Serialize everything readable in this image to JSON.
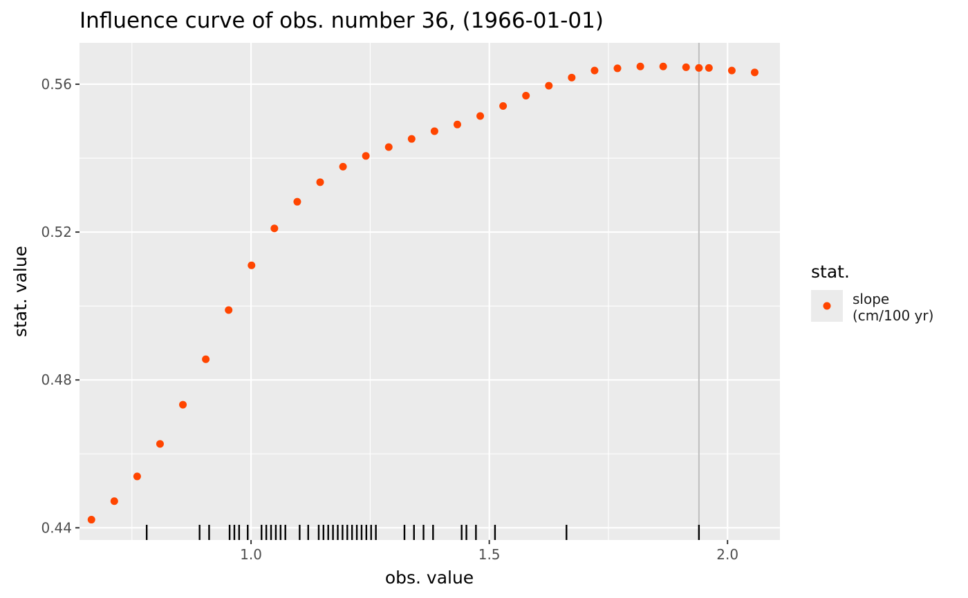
{
  "chart_data": {
    "type": "scatter",
    "title": "Influence curve of obs. number 36, (1966-01-01)",
    "xlabel": "obs. value",
    "ylabel": "stat. value",
    "xlim": [
      0.64,
      2.11
    ],
    "ylim": [
      0.4367,
      0.5712
    ],
    "x_ticks": [
      {
        "value": 1.0,
        "label": "1.0"
      },
      {
        "value": 1.5,
        "label": "1.5"
      },
      {
        "value": 2.0,
        "label": "2.0"
      }
    ],
    "y_ticks": [
      {
        "value": 0.44,
        "label": "0.44"
      },
      {
        "value": 0.48,
        "label": "0.48"
      },
      {
        "value": 0.52,
        "label": "0.52"
      },
      {
        "value": 0.56,
        "label": "0.56"
      }
    ],
    "grid": true,
    "legend": {
      "title": "stat.",
      "position": "right",
      "entries": [
        {
          "label_lines": [
            "slope",
            "(cm/100 yr)"
          ],
          "color": "#FF4500"
        }
      ]
    },
    "reference_line_x": 1.94,
    "series": [
      {
        "name": "slope\n(cm/100 yr)",
        "color": "#FF4500",
        "points": [
          {
            "x": 0.665,
            "y": 0.4422
          },
          {
            "x": 0.713,
            "y": 0.4472
          },
          {
            "x": 0.761,
            "y": 0.4539
          },
          {
            "x": 0.809,
            "y": 0.4627
          },
          {
            "x": 0.857,
            "y": 0.4733
          },
          {
            "x": 0.905,
            "y": 0.4856
          },
          {
            "x": 0.953,
            "y": 0.4989
          },
          {
            "x": 1.001,
            "y": 0.511
          },
          {
            "x": 1.049,
            "y": 0.521
          },
          {
            "x": 1.097,
            "y": 0.5282
          },
          {
            "x": 1.145,
            "y": 0.5335
          },
          {
            "x": 1.193,
            "y": 0.5377
          },
          {
            "x": 1.241,
            "y": 0.5406
          },
          {
            "x": 1.289,
            "y": 0.543
          },
          {
            "x": 1.337,
            "y": 0.5452
          },
          {
            "x": 1.385,
            "y": 0.5473
          },
          {
            "x": 1.433,
            "y": 0.5491
          },
          {
            "x": 1.481,
            "y": 0.5514
          },
          {
            "x": 1.529,
            "y": 0.5541
          },
          {
            "x": 1.577,
            "y": 0.5569
          },
          {
            "x": 1.625,
            "y": 0.5596
          },
          {
            "x": 1.673,
            "y": 0.5618
          },
          {
            "x": 1.721,
            "y": 0.5637
          },
          {
            "x": 1.769,
            "y": 0.5643
          },
          {
            "x": 1.817,
            "y": 0.5648
          },
          {
            "x": 1.865,
            "y": 0.5648
          },
          {
            "x": 1.913,
            "y": 0.5646
          },
          {
            "x": 1.94,
            "y": 0.5644
          },
          {
            "x": 1.961,
            "y": 0.5644
          },
          {
            "x": 2.009,
            "y": 0.5637
          },
          {
            "x": 2.057,
            "y": 0.5632
          }
        ]
      }
    ],
    "rug_x": [
      0.781,
      0.892,
      0.912,
      0.955,
      0.965,
      0.975,
      0.993,
      1.022,
      1.032,
      1.042,
      1.052,
      1.062,
      1.072,
      1.102,
      1.12,
      1.142,
      1.152,
      1.162,
      1.172,
      1.182,
      1.192,
      1.202,
      1.212,
      1.222,
      1.232,
      1.242,
      1.252,
      1.262,
      1.322,
      1.342,
      1.362,
      1.382,
      1.442,
      1.452,
      1.472,
      1.512,
      1.662,
      1.94
    ]
  }
}
